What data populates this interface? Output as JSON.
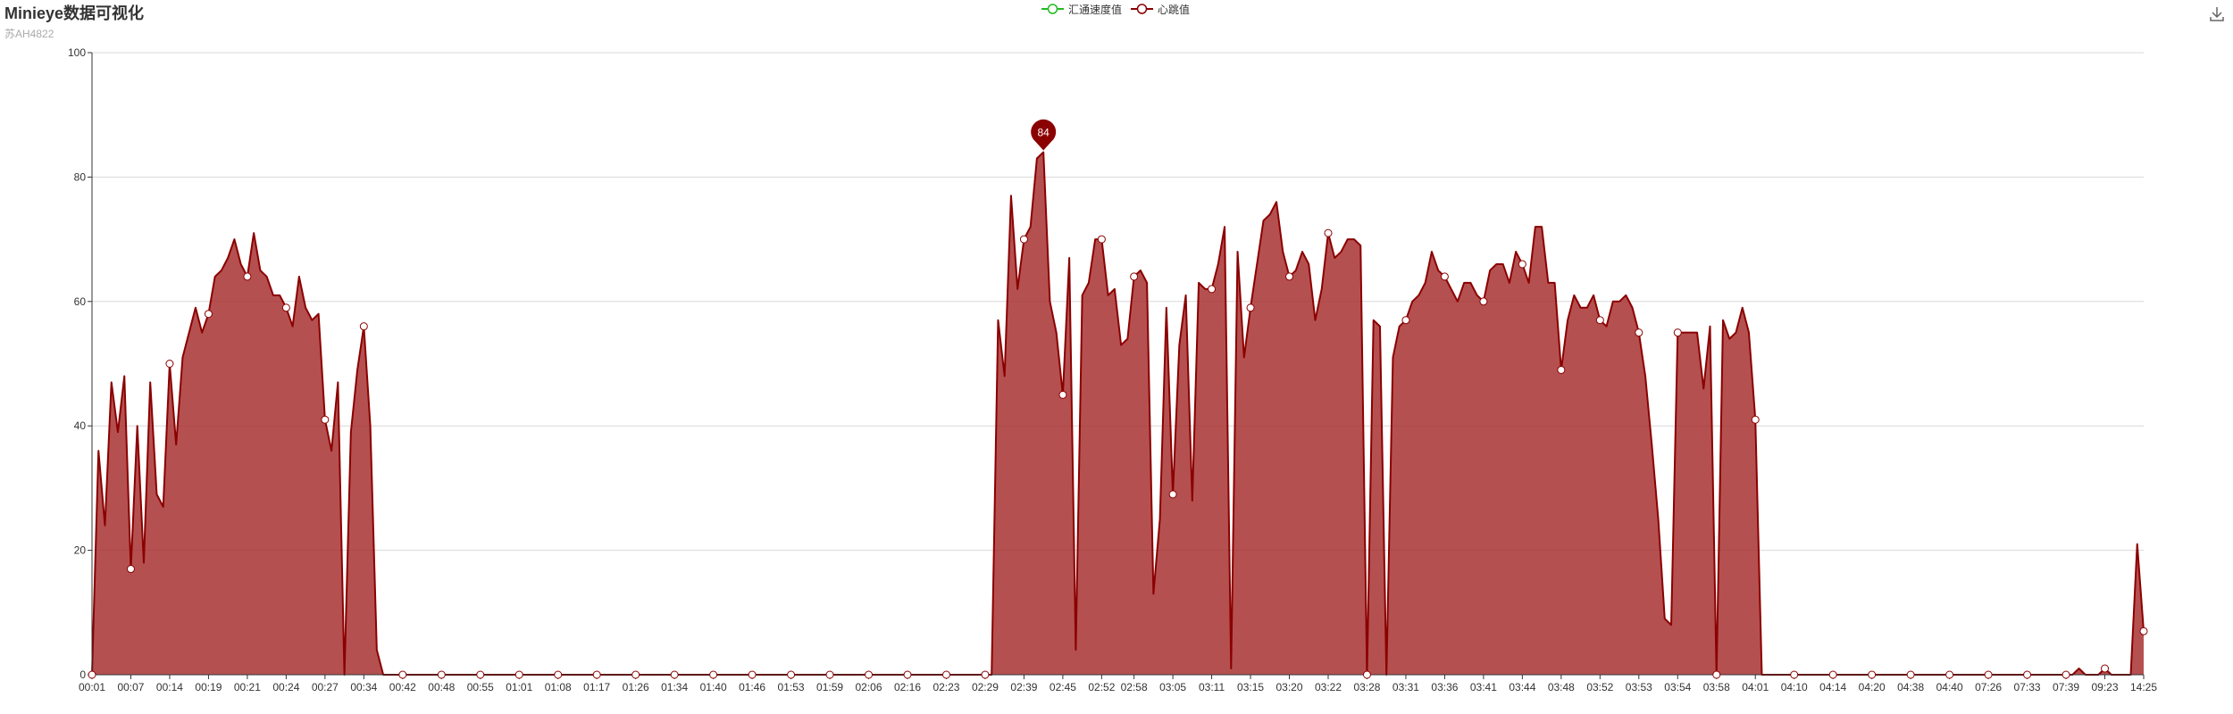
{
  "title": "Minieye数据可视化",
  "subtitle": "苏AH4822",
  "legend": {
    "items": [
      {
        "name": "汇通速度值",
        "color": "#22bb22"
      },
      {
        "name": "心跳值",
        "color": "#8b0000"
      }
    ]
  },
  "toolbar": {
    "download_icon": "download-icon"
  },
  "chart_data": {
    "type": "area",
    "title": "Minieye数据可视化",
    "subtitle": "苏AH4822",
    "ylim": [
      0,
      100
    ],
    "yticks": [
      0,
      20,
      40,
      60,
      80,
      100
    ],
    "grid": true,
    "legend_position": "top-center",
    "area_color": "#a52a2a",
    "line_color": "#8b0000",
    "x_tick_labels": [
      "00:01",
      "00:07",
      "00:14",
      "00:19",
      "00:21",
      "00:24",
      "00:27",
      "00:34",
      "00:42",
      "00:48",
      "00:55",
      "01:01",
      "01:08",
      "01:17",
      "01:26",
      "01:34",
      "01:40",
      "01:46",
      "01:53",
      "01:59",
      "02:06",
      "02:16",
      "02:23",
      "02:29",
      "02:39",
      "02:45",
      "02:52",
      "02:58",
      "03:05",
      "03:11",
      "03:15",
      "03:20",
      "03:22",
      "03:28",
      "03:31",
      "03:36",
      "03:41",
      "03:44",
      "03:48",
      "03:52",
      "03:53",
      "03:54",
      "03:58",
      "04:01",
      "04:10",
      "04:14",
      "04:20",
      "04:38",
      "04:40",
      "07:26",
      "07:33",
      "07:39",
      "09:23",
      "14:25"
    ],
    "series": [
      {
        "name": "心跳值",
        "values": [
          0,
          36,
          24,
          47,
          39,
          48,
          17,
          40,
          18,
          47,
          29,
          27,
          50,
          37,
          51,
          55,
          59,
          55,
          58,
          64,
          65,
          67,
          70,
          66,
          64,
          71,
          65,
          64,
          61,
          61,
          59,
          56,
          64,
          59,
          57,
          58,
          41,
          36,
          47,
          0,
          39,
          49,
          56,
          40,
          4,
          0,
          0,
          0,
          0,
          0,
          0,
          0,
          0,
          0,
          0,
          0,
          0,
          0,
          0,
          0,
          0,
          0,
          0,
          0,
          0,
          0,
          0,
          0,
          0,
          0,
          0,
          0,
          0,
          0,
          0,
          0,
          0,
          0,
          0,
          0,
          0,
          0,
          0,
          0,
          0,
          0,
          0,
          0,
          0,
          0,
          0,
          0,
          0,
          0,
          0,
          0,
          0,
          0,
          0,
          0,
          0,
          0,
          0,
          0,
          0,
          0,
          0,
          0,
          0,
          0,
          0,
          0,
          0,
          0,
          0,
          0,
          0,
          0,
          0,
          0,
          0,
          0,
          0,
          0,
          0,
          0,
          0,
          0,
          0,
          0,
          0,
          0,
          0,
          0,
          0,
          0,
          0,
          0,
          0,
          0,
          57,
          48,
          77,
          62,
          70,
          72,
          83,
          84,
          60,
          55,
          45,
          67,
          4,
          61,
          63,
          70,
          70,
          61,
          62,
          53,
          54,
          64,
          65,
          63,
          13,
          25,
          59,
          29,
          53,
          61,
          28,
          63,
          62,
          62,
          66,
          72,
          1,
          68,
          51,
          59,
          66,
          73,
          74,
          76,
          68,
          64,
          65,
          68,
          66,
          57,
          62,
          71,
          67,
          68,
          70,
          70,
          69,
          0,
          57,
          56,
          0,
          51,
          56,
          57,
          60,
          61,
          63,
          68,
          65,
          64,
          62,
          60,
          63,
          63,
          61,
          60,
          65,
          66,
          66,
          63,
          68,
          66,
          63,
          72,
          72,
          63,
          63,
          49,
          57,
          61,
          59,
          59,
          61,
          57,
          56,
          60,
          60,
          61,
          59,
          55,
          48,
          37,
          25,
          9,
          8,
          55,
          55,
          55,
          55,
          46,
          56,
          0,
          57,
          54,
          55,
          59,
          55,
          41,
          0,
          0,
          0,
          0,
          0,
          0,
          0,
          0,
          0,
          0,
          0,
          0,
          0,
          0,
          0,
          0,
          0,
          0,
          0,
          0,
          0,
          0,
          0,
          0,
          0,
          0,
          0,
          0,
          0,
          0,
          0,
          0,
          0,
          0,
          0,
          0,
          0,
          0,
          0,
          0,
          0,
          0,
          0,
          0,
          0,
          0,
          0,
          0,
          0,
          1,
          0,
          0,
          0,
          1,
          0,
          0,
          0,
          0,
          21,
          7
        ]
      }
    ],
    "annotations": [
      {
        "type": "max-marker",
        "label": "84"
      }
    ]
  }
}
